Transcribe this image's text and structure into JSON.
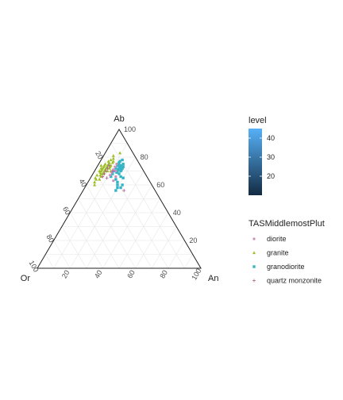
{
  "chart_data": {
    "type": "scatter",
    "projection": "ternary",
    "vertices": {
      "top": "Ab",
      "left": "Or",
      "right": "An"
    },
    "ticks": [
      20,
      40,
      60,
      80,
      100
    ],
    "grid": true,
    "series": [
      {
        "name": "granite",
        "color": "#9fbf2a",
        "marker": "triangle",
        "points": [
          [
            72,
            22,
            6
          ],
          [
            74,
            20,
            6
          ],
          [
            70,
            24,
            6
          ],
          [
            68,
            26,
            6
          ],
          [
            75,
            19,
            6
          ],
          [
            71,
            23,
            6
          ],
          [
            73,
            21,
            6
          ],
          [
            69,
            25,
            6
          ],
          [
            76,
            18,
            6
          ],
          [
            67,
            28,
            5
          ],
          [
            72,
            24,
            4
          ],
          [
            70,
            26,
            4
          ],
          [
            74,
            22,
            4
          ],
          [
            78,
            16,
            6
          ],
          [
            66,
            28,
            6
          ],
          [
            73,
            23,
            4
          ],
          [
            71,
            25,
            4
          ],
          [
            69,
            27,
            4
          ],
          [
            75,
            21,
            4
          ],
          [
            68,
            27,
            5
          ],
          [
            72,
            20,
            8
          ],
          [
            70,
            22,
            8
          ],
          [
            74,
            18,
            8
          ],
          [
            76,
            16,
            8
          ],
          [
            65,
            32,
            3
          ],
          [
            64,
            32,
            4
          ],
          [
            70,
            27,
            3
          ],
          [
            72,
            25,
            3
          ],
          [
            77,
            15,
            8
          ],
          [
            79,
            14,
            7
          ],
          [
            81,
            13,
            6
          ],
          [
            60,
            35,
            5
          ],
          [
            62,
            34,
            4
          ],
          [
            83,
            8,
            9
          ],
          [
            67,
            30,
            3
          ],
          [
            77,
            18,
            5
          ],
          [
            74,
            24,
            2
          ],
          [
            73,
            19,
            8
          ],
          [
            70,
            20,
            10
          ],
          [
            64,
            30,
            6
          ]
        ]
      },
      {
        "name": "granodiorite",
        "color": "#35b4c6",
        "marker": "square",
        "points": [
          [
            74,
            14,
            12
          ],
          [
            72,
            16,
            12
          ],
          [
            70,
            18,
            12
          ],
          [
            73,
            13,
            14
          ],
          [
            71,
            15,
            14
          ],
          [
            69,
            17,
            14
          ],
          [
            75,
            13,
            12
          ],
          [
            68,
            20,
            12
          ],
          [
            76,
            12,
            12
          ],
          [
            72,
            14,
            14
          ],
          [
            70,
            16,
            14
          ],
          [
            66,
            22,
            12
          ],
          [
            74,
            12,
            14
          ],
          [
            77,
            11,
            12
          ],
          [
            71,
            13,
            16
          ],
          [
            68,
            16,
            16
          ],
          [
            66,
            16,
            18
          ],
          [
            70,
            14,
            16
          ],
          [
            73,
            11,
            16
          ],
          [
            64,
            20,
            16
          ],
          [
            62,
            20,
            18
          ],
          [
            60,
            21,
            19
          ],
          [
            58,
            22,
            20
          ],
          [
            56,
            24,
            20
          ],
          [
            60,
            18,
            22
          ],
          [
            58,
            20,
            22
          ],
          [
            65,
            15,
            20
          ],
          [
            72,
            12,
            16
          ],
          [
            75,
            10,
            15
          ],
          [
            78,
            9,
            13
          ]
        ]
      },
      {
        "name": "diorite",
        "color": "#d08fb8",
        "marker": "circle",
        "points": [
          [
            71,
            18,
            11
          ],
          [
            73,
            16,
            11
          ],
          [
            69,
            20,
            11
          ],
          [
            67,
            22,
            11
          ],
          [
            75,
            14,
            11
          ],
          [
            66,
            19,
            15
          ],
          [
            70,
            17,
            13
          ],
          [
            63,
            22,
            15
          ]
        ]
      },
      {
        "name": "quartz monzonite",
        "color": "#b06090",
        "marker": "plus",
        "points": [
          [
            70,
            23,
            7
          ],
          [
            72,
            21,
            7
          ],
          [
            68,
            25,
            7
          ],
          [
            74,
            19,
            7
          ],
          [
            66,
            27,
            7
          ],
          [
            65,
            25,
            10
          ],
          [
            70,
            19,
            11
          ],
          [
            56,
            19,
            25
          ]
        ]
      }
    ],
    "legend": {
      "position": "right",
      "color_bar": {
        "title": "level",
        "min": 10,
        "max": 45,
        "ticks": [
          20,
          30,
          40
        ],
        "low_color": "#132b43",
        "high_color": "#56b1f7"
      },
      "shape_title": "TASMiddlemostPlut",
      "entries": [
        "diorite",
        "granite",
        "granodiorite",
        "quartz monzonite"
      ]
    }
  }
}
